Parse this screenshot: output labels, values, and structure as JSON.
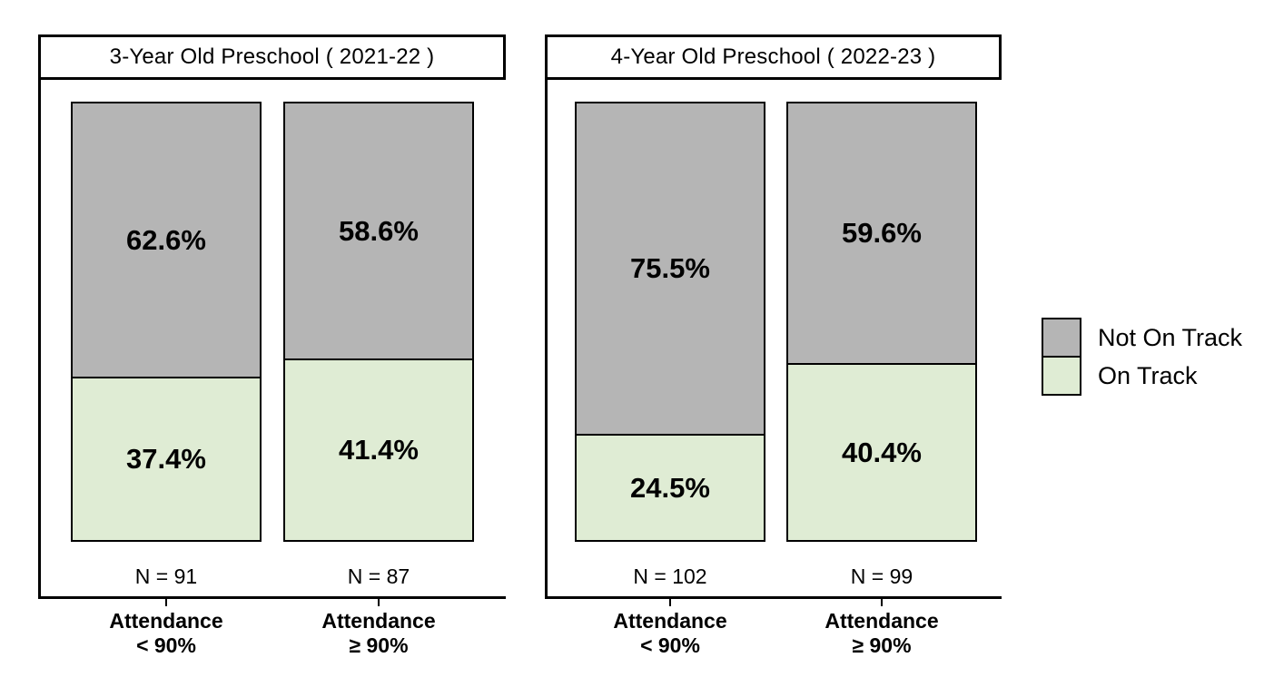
{
  "chart_data": {
    "type": "bar",
    "variant": "100-percent-stacked-faceted",
    "grid": false,
    "ylim": [
      0,
      100
    ],
    "colors": {
      "not_on_track": "#b5b5b5",
      "on_track": "#dfecd4",
      "outline": "#000000",
      "background": "#ffffff"
    },
    "legend": {
      "position": "right",
      "items": [
        {
          "label": "Not On Track",
          "color": "#b5b5b5"
        },
        {
          "label": "On Track",
          "color": "#dfecd4"
        }
      ]
    },
    "panels": [
      {
        "title": "3-Year Old Preschool ( 2021-22 )",
        "bars": [
          {
            "category": "Attendance\n< 90%",
            "n_label": "N = 91",
            "n": 91,
            "segments": [
              {
                "series": "Not On Track",
                "value": 62.6,
                "label": "62.6%"
              },
              {
                "series": "On Track",
                "value": 37.4,
                "label": "37.4%"
              }
            ]
          },
          {
            "category": "Attendance\n≥ 90%",
            "n_label": "N = 87",
            "n": 87,
            "segments": [
              {
                "series": "Not On Track",
                "value": 58.6,
                "label": "58.6%"
              },
              {
                "series": "On Track",
                "value": 41.4,
                "label": "41.4%"
              }
            ]
          }
        ]
      },
      {
        "title": "4-Year Old Preschool ( 2022-23 )",
        "bars": [
          {
            "category": "Attendance\n< 90%",
            "n_label": "N = 102",
            "n": 102,
            "segments": [
              {
                "series": "Not On Track",
                "value": 75.5,
                "label": "75.5%"
              },
              {
                "series": "On Track",
                "value": 24.5,
                "label": "24.5%"
              }
            ]
          },
          {
            "category": "Attendance\n≥ 90%",
            "n_label": "N = 99",
            "n": 99,
            "segments": [
              {
                "series": "Not On Track",
                "value": 59.6,
                "label": "59.6%"
              },
              {
                "series": "On Track",
                "value": 40.4,
                "label": "40.4%"
              }
            ]
          }
        ]
      }
    ]
  }
}
